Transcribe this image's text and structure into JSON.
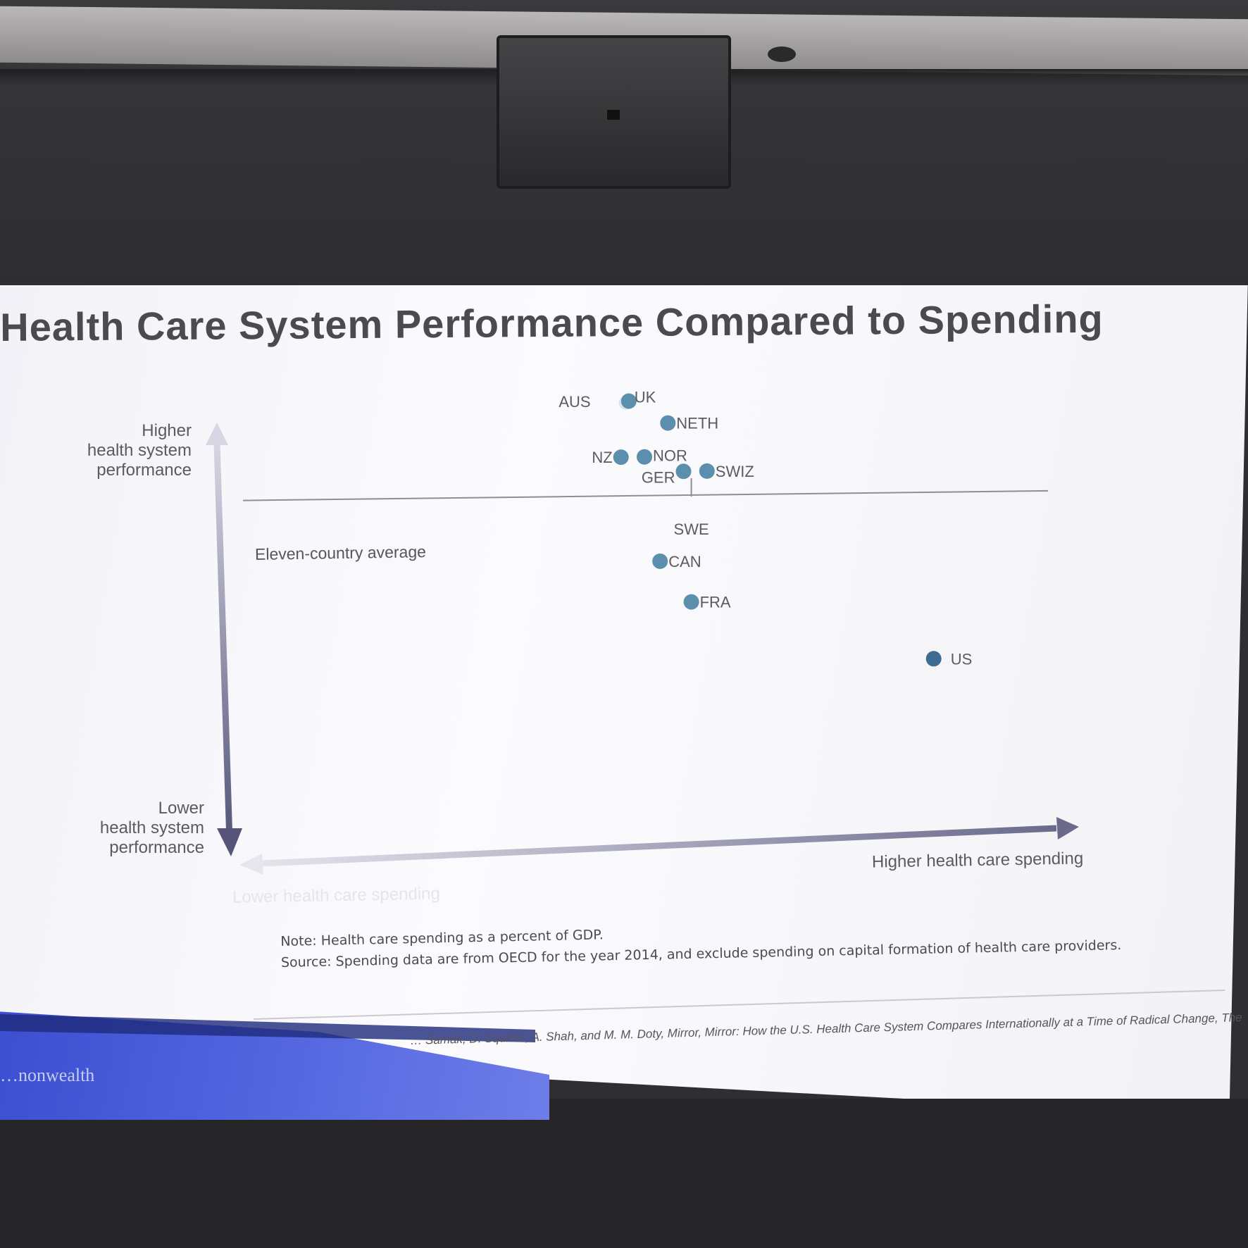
{
  "slide": {
    "title": "Health Care System Performance Compared to Spending",
    "y_label_high": "Higher\nhealth system\nperformance",
    "y_label_low": "Lower\nhealth system\nperformance",
    "x_label_high": "Higher health care spending",
    "x_label_low": "Lower health care spending",
    "average_label": "Eleven-country average",
    "note_line1": "Note: Health care spending as a percent of GDP.",
    "note_line2": "Source: Spending data are from OECD for the year 2014, and exclude spending on capital formation of health care providers.",
    "citation": "… Samak, D. Squires, A. Shah, and M. M. Doty, Mirror, Mirror: How the U.S. Health Care System Compares Internationally at a Time of Radical Change, The",
    "banner_logo": "…nonwealth"
  },
  "colors": {
    "point": "#5b8fad",
    "point_us": "#3f6a92",
    "axis_arrow": "#6c6a85",
    "average_line": "#8e8e96"
  },
  "chart_data": {
    "type": "scatter",
    "title": "Health Care System Performance Compared to Spending",
    "xlabel": "Higher health care spending",
    "ylabel": "Higher health system performance",
    "xlim": [
      0,
      100
    ],
    "ylim": [
      0,
      100
    ],
    "average_y": 72,
    "grid": false,
    "legend": "none",
    "points": [
      {
        "label": "AUS",
        "x": 46,
        "y": 97
      },
      {
        "label": "UK",
        "x": 48,
        "y": 97
      },
      {
        "label": "NETH",
        "x": 53,
        "y": 91
      },
      {
        "label": "NZ",
        "x": 47,
        "y": 82
      },
      {
        "label": "NOR",
        "x": 50,
        "y": 82
      },
      {
        "label": "GER",
        "x": 55,
        "y": 78
      },
      {
        "label": "SWIZ",
        "x": 58,
        "y": 78
      },
      {
        "label": "SWE",
        "x": 56,
        "y": 72
      },
      {
        "label": "CAN",
        "x": 52,
        "y": 54
      },
      {
        "label": "FRA",
        "x": 56,
        "y": 43
      },
      {
        "label": "US",
        "x": 87,
        "y": 27
      }
    ]
  }
}
